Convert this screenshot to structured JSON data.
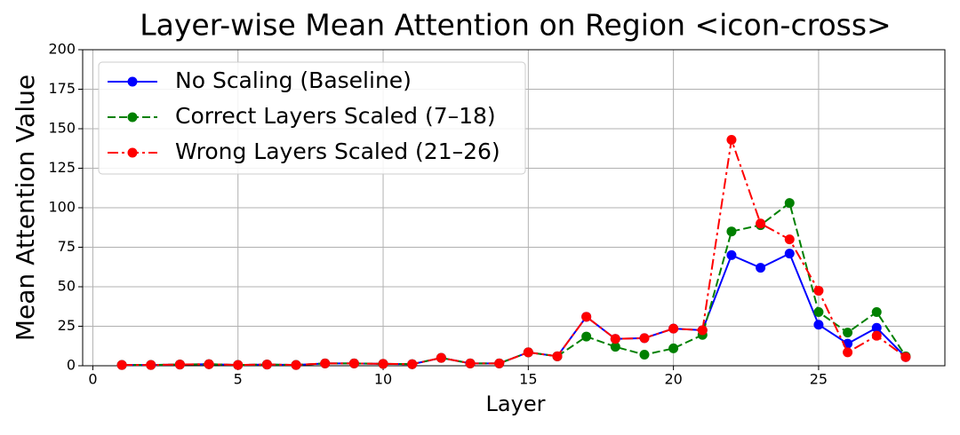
{
  "chart_data": {
    "type": "line",
    "title": "Layer-wise Mean Attention on Region <icon-cross>",
    "x_label": "Layer",
    "y_label": "Mean Attention Value",
    "x": [
      1,
      2,
      3,
      4,
      5,
      6,
      7,
      8,
      9,
      10,
      11,
      12,
      13,
      14,
      15,
      16,
      17,
      18,
      19,
      20,
      21,
      22,
      23,
      24,
      25,
      26,
      27,
      28
    ],
    "series": [
      {
        "name": "No Scaling (Baseline)",
        "color": "#0000ff",
        "linestyle": "solid",
        "values": [
          0.5,
          0.5,
          0.8,
          1,
          0.5,
          0.8,
          0.5,
          1.5,
          1.5,
          1.2,
          1,
          5,
          1.5,
          1.5,
          8.5,
          6,
          31,
          17,
          17.5,
          23.5,
          22.5,
          70,
          62,
          71,
          26,
          14,
          24,
          5.5
        ]
      },
      {
        "name": "Correct Layers Scaled (7–18)",
        "color": "#008000",
        "linestyle": "dashed",
        "values": [
          0.5,
          0.5,
          0.8,
          1,
          0.5,
          0.8,
          0.5,
          1.5,
          1.5,
          1.2,
          1,
          5,
          1.5,
          1.5,
          8.5,
          6,
          18.5,
          12,
          7,
          11,
          19.5,
          85,
          89,
          103,
          34,
          21,
          34,
          6
        ]
      },
      {
        "name": "Wrong Layers Scaled (21–26)",
        "color": "#ff0000",
        "linestyle": "dashdot",
        "values": [
          0.5,
          0.5,
          0.8,
          1,
          0.5,
          0.8,
          0.5,
          1.5,
          1.5,
          1.2,
          1,
          5,
          1.5,
          1.5,
          8.5,
          6,
          31,
          17,
          17.5,
          23.5,
          22.5,
          143,
          90,
          80,
          47.5,
          8.5,
          19,
          5.5
        ]
      }
    ],
    "xlim": [
      -0.35,
      29.35
    ],
    "ylim": [
      0,
      200
    ],
    "xticks": [
      0,
      5,
      10,
      15,
      20,
      25
    ],
    "yticks": [
      0,
      25,
      50,
      75,
      100,
      125,
      150,
      175,
      200
    ],
    "grid": true,
    "legend": "upper-left"
  }
}
